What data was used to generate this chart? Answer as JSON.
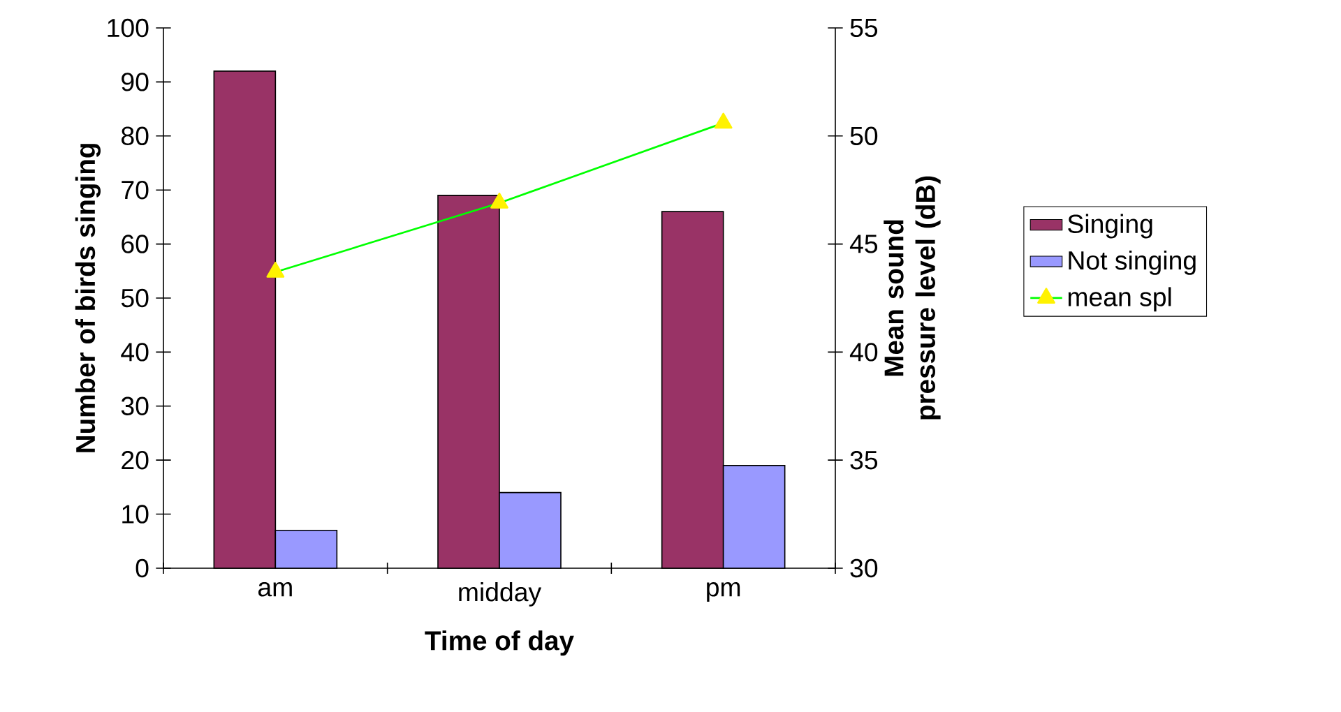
{
  "chart_data": {
    "type": "bar",
    "xlabel": "Time of day",
    "ylabel": "Number of birds singing",
    "y2label": "Mean sound pressure level (dB)",
    "categories": [
      "am",
      "midday",
      "pm"
    ],
    "series": [
      {
        "name": "Singing",
        "color": "#993366",
        "values": [
          92,
          69,
          66
        ]
      },
      {
        "name": "Not singing",
        "color": "#9999ff",
        "values": [
          7,
          14,
          19
        ]
      },
      {
        "name": "mean spl",
        "type": "line",
        "axis": "y2",
        "color": "#00ff00",
        "marker": "triangle",
        "values": [
          43.7,
          46.9,
          50.6
        ]
      }
    ],
    "ylim": [
      0,
      100
    ],
    "yticks": [
      0,
      10,
      20,
      30,
      40,
      50,
      60,
      70,
      80,
      90,
      100
    ],
    "y2lim": [
      30,
      55
    ],
    "y2ticks": [
      30,
      35,
      40,
      45,
      50,
      55
    ],
    "legend": "right",
    "grid": false
  }
}
